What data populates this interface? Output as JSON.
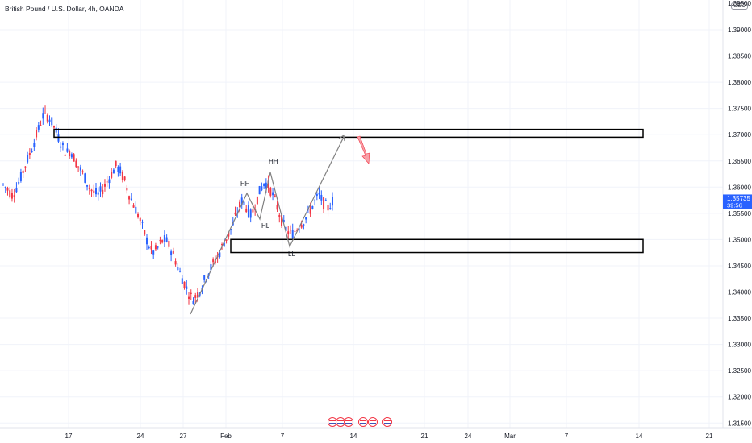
{
  "header": {
    "symbol_title": "British Pound / U.S. Dollar, 4h, OANDA",
    "currency": "USD"
  },
  "price_axis": {
    "labels": [
      "1.39000",
      "1.38500",
      "1.38000",
      "1.37500",
      "1.37000",
      "1.36500",
      "1.36000",
      "1.35500",
      "1.35000",
      "1.34500",
      "1.34000",
      "1.33500",
      "1.33000",
      "1.32500",
      "1.32000",
      "1.31500"
    ],
    "top_partial_label": "1.39500",
    "current_price": "1.35735",
    "countdown": "39:56"
  },
  "time_axis": {
    "labels": [
      "17",
      "24",
      "27",
      "Feb",
      "7",
      "14",
      "21",
      "24",
      "Mar",
      "7",
      "14",
      "21"
    ]
  },
  "annotations": {
    "hh_1": "HH",
    "hh_2": "HH",
    "hl": "HL",
    "ll": "LL"
  },
  "colors": {
    "bull": "#2962ff",
    "bear": "#f23645",
    "current_price_bg": "#2962ff",
    "next_move_arrow": "#f7a1a8",
    "trend_line": "#808080",
    "grid": "#f0f3fa"
  },
  "icons": [
    "flag-us-icon",
    "flag-uk-icon",
    "flag-us-icon",
    "flag-us-icon",
    "flag-uk-icon",
    "flag-uk-icon"
  ],
  "chart_data": {
    "type": "candlestick",
    "ylim": [
      1.3125,
      1.3975
    ],
    "x_ticks": [
      "17",
      "24",
      "27",
      "Feb",
      "7",
      "14",
      "21",
      "24",
      "Mar",
      "7",
      "14",
      "21"
    ],
    "close_path": [
      1.3605,
      1.3595,
      1.3585,
      1.36,
      1.362,
      1.3645,
      1.3665,
      1.369,
      1.3715,
      1.374,
      1.3735,
      1.372,
      1.37,
      1.368,
      1.3665,
      1.367,
      1.365,
      1.3635,
      1.362,
      1.36,
      1.359,
      1.3585,
      1.3595,
      1.361,
      1.3625,
      1.364,
      1.363,
      1.361,
      1.3585,
      1.3565,
      1.3545,
      1.352,
      1.3495,
      1.3475,
      1.348,
      1.3495,
      1.35,
      1.3485,
      1.3465,
      1.344,
      1.342,
      1.34,
      1.3385,
      1.3395,
      1.341,
      1.343,
      1.3445,
      1.346,
      1.3475,
      1.3495,
      1.351,
      1.353,
      1.3555,
      1.3575,
      1.356,
      1.3545,
      1.357,
      1.3595,
      1.361,
      1.36,
      1.358,
      1.3555,
      1.353,
      1.3515,
      1.351,
      1.352,
      1.353,
      1.354,
      1.3555,
      1.357,
      1.3585,
      1.357,
      1.356,
      1.3573
    ],
    "supply_zone": [
      1.3695,
      1.371
    ],
    "demand_zone": [
      1.3475,
      1.35
    ],
    "current_price": 1.35735
  }
}
